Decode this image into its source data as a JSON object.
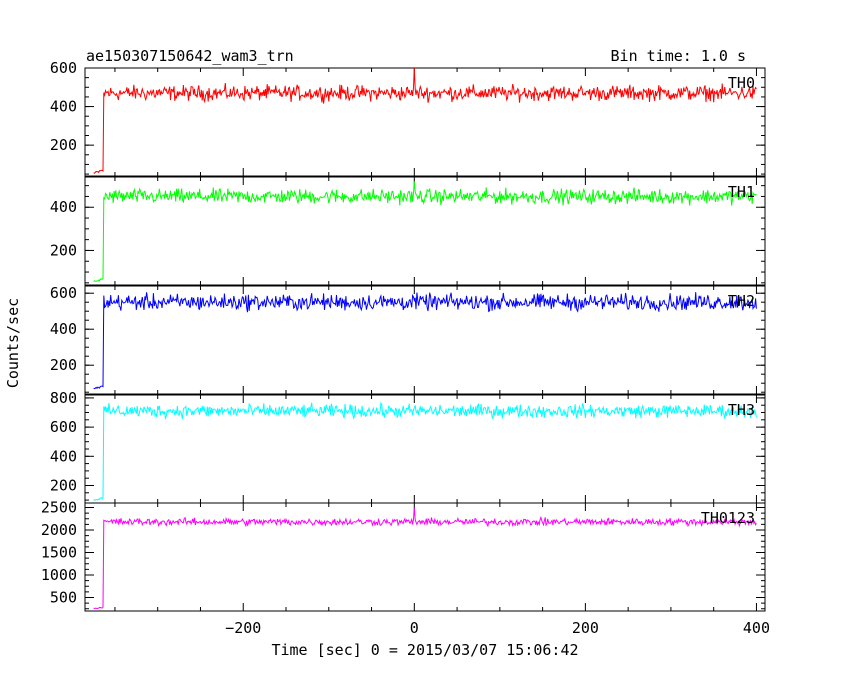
{
  "header": {
    "title": "ae150307150642_wam3_trn",
    "bin_time": "Bin time: 1.0 s"
  },
  "axes": {
    "ylabel": "Counts/sec",
    "xlabel": "Time [sec] 0 = 2015/03/07 15:06:42",
    "xlim": [
      -385,
      410
    ],
    "xticks": [
      -200,
      0,
      200,
      400
    ],
    "xtick_labels": [
      "−200",
      "0",
      "200",
      "400"
    ]
  },
  "chart_data": {
    "type": "line",
    "title": "ae150307150642_wam3_trn",
    "xlabel": "Time [sec] 0 = 2015/03/07 15:06:42",
    "ylabel": "Counts/sec",
    "xlim": [
      -385,
      410
    ],
    "series": [
      {
        "name": "TH0",
        "color": "#ff0000",
        "ylim": [
          40,
          600
        ],
        "yticks": [
          200,
          400,
          600
        ],
        "pre_level": 55,
        "level": 470,
        "noise": 35,
        "points": [
          [
            -375,
            50
          ],
          [
            -365,
            60
          ],
          [
            -363,
            470
          ],
          [
            -300,
            480
          ],
          [
            -200,
            470
          ],
          [
            0,
            600
          ],
          [
            100,
            470
          ],
          [
            200,
            475
          ],
          [
            300,
            470
          ],
          [
            400,
            470
          ]
        ]
      },
      {
        "name": "TH1",
        "color": "#00ff00",
        "ylim": [
          40,
          540
        ],
        "yticks": [
          200,
          400
        ],
        "pre_level": 55,
        "level": 450,
        "noise": 30,
        "points": [
          [
            -375,
            50
          ],
          [
            -365,
            60
          ],
          [
            -363,
            450
          ],
          [
            -300,
            455
          ],
          [
            -200,
            450
          ],
          [
            0,
            520
          ],
          [
            100,
            450
          ],
          [
            200,
            450
          ],
          [
            300,
            450
          ],
          [
            400,
            450
          ]
        ]
      },
      {
        "name": "TH2",
        "color": "#0000ff",
        "ylim": [
          40,
          640
        ],
        "yticks": [
          200,
          400,
          600
        ],
        "pre_level": 70,
        "level": 550,
        "noise": 40,
        "points": [
          [
            -375,
            70
          ],
          [
            -365,
            80
          ],
          [
            -363,
            550
          ],
          [
            -300,
            560
          ],
          [
            -200,
            550
          ],
          [
            0,
            560
          ],
          [
            100,
            550
          ],
          [
            200,
            545
          ],
          [
            300,
            550
          ],
          [
            400,
            550
          ]
        ]
      },
      {
        "name": "TH3",
        "color": "#00ffff",
        "ylim": [
          80,
          820
        ],
        "yticks": [
          200,
          400,
          600,
          800
        ],
        "pre_level": 100,
        "level": 710,
        "noise": 40,
        "points": [
          [
            -375,
            100
          ],
          [
            -365,
            110
          ],
          [
            -363,
            710
          ],
          [
            -300,
            720
          ],
          [
            -200,
            710
          ],
          [
            0,
            730
          ],
          [
            100,
            710
          ],
          [
            200,
            705
          ],
          [
            300,
            710
          ],
          [
            400,
            710
          ]
        ]
      },
      {
        "name": "TH0123",
        "color": "#ff00ff",
        "ylim": [
          200,
          2600
        ],
        "yticks": [
          500,
          1000,
          1500,
          2000,
          2500
        ],
        "pre_level": 260,
        "level": 2180,
        "noise": 70,
        "points": [
          [
            -375,
            260
          ],
          [
            -365,
            280
          ],
          [
            -363,
            2180
          ],
          [
            -300,
            2200
          ],
          [
            -200,
            2180
          ],
          [
            0,
            2500
          ],
          [
            100,
            2190
          ],
          [
            200,
            2170
          ],
          [
            300,
            2180
          ],
          [
            400,
            2180
          ]
        ]
      }
    ]
  }
}
